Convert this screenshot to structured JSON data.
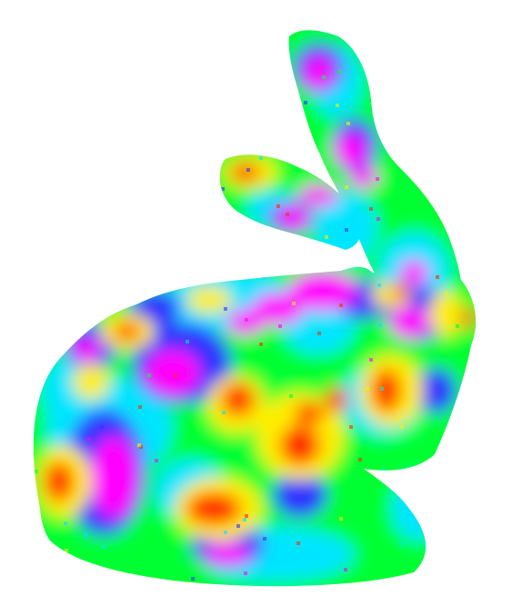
{
  "image": {
    "subject": "stanford-bunny",
    "background": "#ffffff",
    "colormap": {
      "name": "hsv-rainbow",
      "stops": [
        "#ff2a00",
        "#ffee00",
        "#00ff33",
        "#00e5ff",
        "#2d33ff",
        "#ff00ff"
      ]
    }
  }
}
